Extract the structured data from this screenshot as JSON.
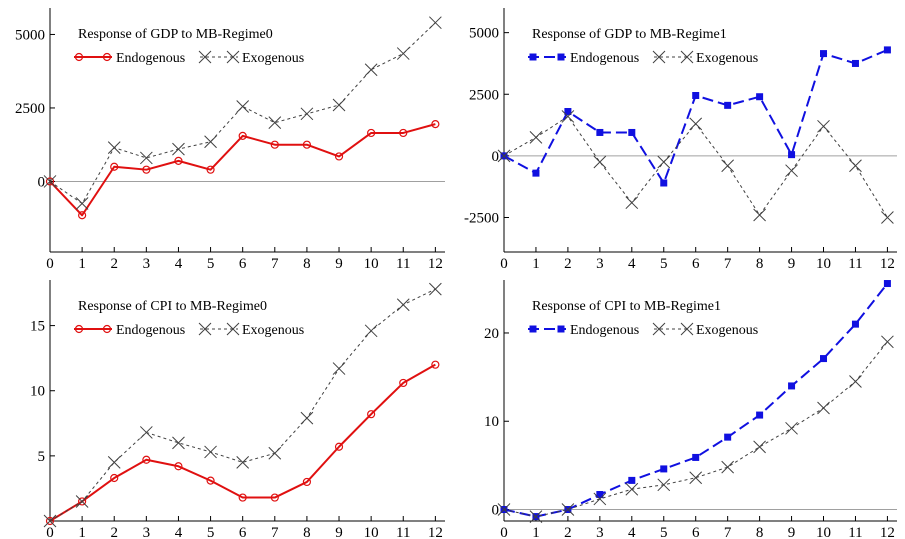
{
  "chart_data": [
    {
      "type": "line",
      "title": "Response of GDP to MB-Regime0",
      "x": [
        0,
        1,
        2,
        3,
        4,
        5,
        6,
        7,
        8,
        9,
        10,
        11,
        12
      ],
      "xticks": [
        0,
        1,
        2,
        3,
        4,
        5,
        6,
        7,
        8,
        9,
        10,
        11,
        12
      ],
      "xlim": [
        0,
        12.3
      ],
      "ylim": [
        -2400,
        5900
      ],
      "yticks": [
        0,
        2500,
        5000
      ],
      "zero_line": true,
      "legend_position": "top-left",
      "series": [
        {
          "name": "Endogenous",
          "style": "solid-circle",
          "color": "#e01010",
          "values": [
            0,
            -1150,
            500,
            400,
            700,
            400,
            1550,
            1250,
            1250,
            850,
            1650,
            1650,
            1950
          ]
        },
        {
          "name": "Exogenous",
          "style": "dotted-x",
          "color": "#404040",
          "values": [
            0,
            -750,
            1150,
            800,
            1100,
            1350,
            2550,
            2000,
            2300,
            2600,
            3800,
            4350,
            5400
          ]
        }
      ]
    },
    {
      "type": "line",
      "title": "Response of GDP to MB-Regime1",
      "x": [
        0,
        1,
        2,
        3,
        4,
        5,
        6,
        7,
        8,
        9,
        10,
        11,
        12
      ],
      "xticks": [
        0,
        1,
        2,
        3,
        4,
        5,
        6,
        7,
        8,
        9,
        10,
        11,
        12
      ],
      "xlim": [
        0,
        12.3
      ],
      "ylim": [
        -3900,
        6000
      ],
      "yticks": [
        -2500,
        0,
        2500,
        5000
      ],
      "zero_line": true,
      "legend_position": "top-left",
      "series": [
        {
          "name": "Endogenous",
          "style": "dashed-square",
          "color": "#1010e0",
          "values": [
            0,
            -700,
            1800,
            950,
            950,
            -1100,
            2450,
            2050,
            2400,
            50,
            4150,
            3750,
            4300
          ]
        },
        {
          "name": "Exogenous",
          "style": "dotted-x",
          "color": "#404040",
          "values": [
            0,
            750,
            1600,
            -250,
            -1900,
            -250,
            1300,
            -400,
            -2400,
            -600,
            1200,
            -400,
            -2500
          ]
        }
      ]
    },
    {
      "type": "line",
      "title": "Response of CPI to MB-Regime0",
      "x": [
        0,
        1,
        2,
        3,
        4,
        5,
        6,
        7,
        8,
        9,
        10,
        11,
        12
      ],
      "xticks": [
        0,
        1,
        2,
        3,
        4,
        5,
        6,
        7,
        8,
        9,
        10,
        11,
        12
      ],
      "xlim": [
        0,
        12.3
      ],
      "ylim": [
        0,
        18.5
      ],
      "yticks": [
        5,
        10,
        15
      ],
      "zero_line": false,
      "legend_position": "top-left",
      "series": [
        {
          "name": "Endogenous",
          "style": "solid-circle",
          "color": "#e01010",
          "values": [
            0,
            1.5,
            3.3,
            4.7,
            4.2,
            3.1,
            1.8,
            1.8,
            3.0,
            5.7,
            8.2,
            10.6,
            12.0
          ]
        },
        {
          "name": "Exogenous",
          "style": "dotted-x",
          "color": "#404040",
          "values": [
            0,
            1.5,
            4.5,
            6.8,
            6.0,
            5.3,
            4.5,
            5.2,
            7.9,
            11.7,
            14.6,
            16.6,
            17.8
          ]
        }
      ]
    },
    {
      "type": "line",
      "title": "Response of CPI to MB-Regime1",
      "x": [
        0,
        1,
        2,
        3,
        4,
        5,
        6,
        7,
        8,
        9,
        10,
        11,
        12
      ],
      "xticks": [
        0,
        1,
        2,
        3,
        4,
        5,
        6,
        7,
        8,
        9,
        10,
        11,
        12
      ],
      "xlim": [
        0,
        12.3
      ],
      "ylim": [
        -1.3,
        26
      ],
      "yticks": [
        0,
        10,
        20
      ],
      "zero_line": true,
      "legend_position": "top-left",
      "series": [
        {
          "name": "Endogenous",
          "style": "dashed-square",
          "color": "#1010e0",
          "values": [
            0,
            -0.8,
            0,
            1.7,
            3.3,
            4.6,
            5.9,
            8.2,
            10.7,
            14.0,
            17.1,
            21.0,
            25.6
          ]
        },
        {
          "name": "Exogenous",
          "style": "dotted-x",
          "color": "#404040",
          "values": [
            0,
            -0.8,
            0,
            1.2,
            2.3,
            2.8,
            3.6,
            4.8,
            7.1,
            9.2,
            11.5,
            14.5,
            19.0
          ]
        }
      ]
    }
  ]
}
